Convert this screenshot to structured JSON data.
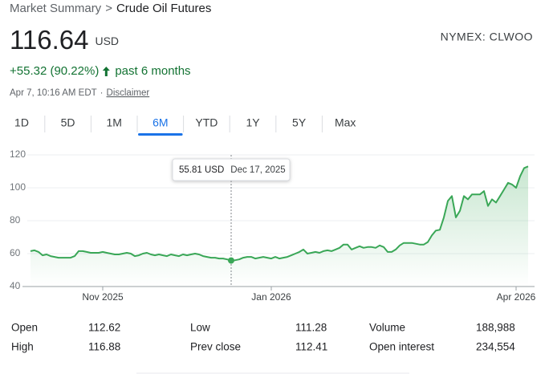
{
  "header": {
    "breadcrumb": [
      "Market Summary",
      "Crude Oil Futures"
    ],
    "breadcrumb_separator": ">",
    "price": "116.64",
    "currency": "USD",
    "exchange": "NYMEX: CLWOO",
    "change": "+55.32 (90.22%)",
    "change_period": "past 6 months",
    "timestamp": "Apr 7, 10:16 AM EDT",
    "timestamp_separator": "·",
    "disclaimer": "Disclaimer"
  },
  "tabs": {
    "items": [
      "1D",
      "5D",
      "1M",
      "6M",
      "YTD",
      "1Y",
      "5Y",
      "Max"
    ],
    "selected": "6M"
  },
  "chart_data": {
    "type": "line",
    "color": "#3aa757",
    "values": [
      61.5,
      62,
      61,
      59,
      59.5,
      58.5,
      58,
      57.5,
      57.5,
      57.5,
      57.5,
      58.5,
      61.5,
      61.5,
      61,
      60.5,
      60.5,
      60.5,
      61,
      60.5,
      60,
      59.5,
      59.5,
      60,
      60.5,
      60,
      58.5,
      59,
      60,
      60.5,
      59.5,
      59,
      59.5,
      59,
      58.5,
      59.5,
      59,
      58.5,
      59.5,
      59,
      59.5,
      60,
      59.5,
      58.5,
      58,
      57.5,
      57.5,
      57,
      57,
      56.5,
      55.81,
      56,
      56.5,
      57.5,
      58,
      58,
      57,
      57.5,
      58,
      57.5,
      57,
      58,
      57,
      57.5,
      58,
      59,
      60,
      61,
      62.5,
      60,
      60.5,
      61,
      60.5,
      61.5,
      62,
      61.5,
      62.5,
      63.5,
      65.5,
      65.5,
      62.5,
      63.5,
      64.5,
      63.5,
      64,
      64,
      63.5,
      65,
      64,
      61,
      61,
      62.5,
      65,
      66.5,
      66.5,
      66.5,
      66,
      65.5,
      65.5,
      67,
      71,
      74,
      74.5,
      82,
      92,
      95,
      82,
      86,
      95,
      93,
      96,
      96,
      96,
      98,
      89,
      93,
      91,
      95,
      99,
      103,
      102,
      100,
      107,
      112,
      113
    ],
    "xlim": [
      0,
      124
    ],
    "xticks": [
      {
        "value": 18,
        "label": "Nov 2025"
      },
      {
        "value": 60,
        "label": "Jan 2026"
      },
      {
        "value": 121,
        "label": "Apr 2026"
      }
    ],
    "ylim": [
      40,
      120
    ],
    "yticks": [
      40,
      60,
      80,
      100,
      120
    ],
    "grid": true,
    "highlight_index": 50,
    "tooltip": {
      "label": "55.81 USD",
      "date": "Dec 17, 2025"
    }
  },
  "stats": {
    "rows": [
      [
        [
          "Open",
          "112.62"
        ],
        [
          "Low",
          "111.28"
        ],
        [
          "Volume",
          "188,988"
        ]
      ],
      [
        [
          "High",
          "116.88"
        ],
        [
          "Prev close",
          "112.41"
        ],
        [
          "Open interest",
          "234,554"
        ]
      ]
    ]
  }
}
